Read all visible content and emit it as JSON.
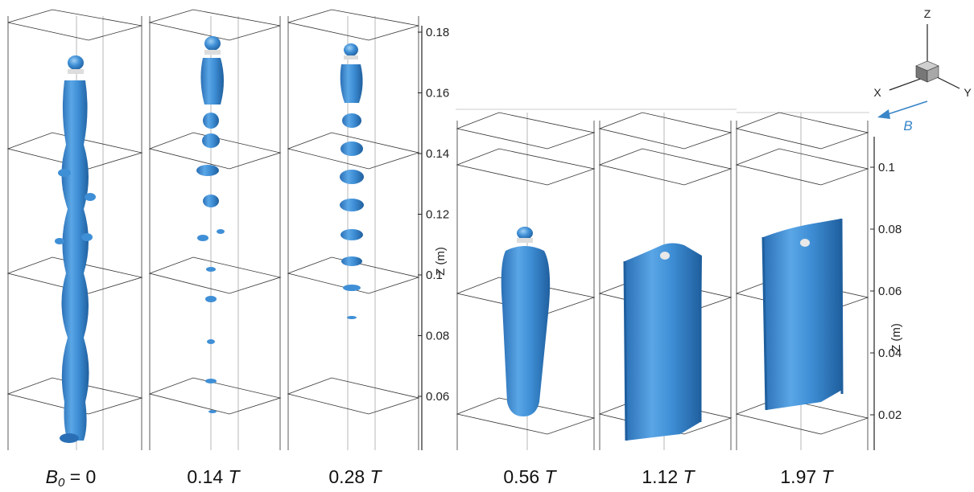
{
  "panels": [
    {
      "label": "0",
      "label_prefix": "B",
      "label_sub": "0",
      "label_eq": " = ",
      "unit": ""
    },
    {
      "label": "0.14",
      "unit": "T"
    },
    {
      "label": "0.28",
      "unit": "T"
    },
    {
      "label": "0.56",
      "unit": "T"
    },
    {
      "label": "1.12",
      "unit": "T"
    },
    {
      "label": "1.97",
      "unit": "T"
    }
  ],
  "axis_left": {
    "title": "Z (m)",
    "ticks": [
      "0.18",
      "0.16",
      "0.14",
      "0.12",
      "0.1",
      "0.08",
      "0.06"
    ]
  },
  "axis_right": {
    "title": "Z (m)",
    "ticks": [
      "0.1",
      "0.08",
      "0.06",
      "0.04",
      "0.02"
    ]
  },
  "triad": {
    "z": "Z",
    "x": "X",
    "y": "Y"
  },
  "field_label": "B",
  "colors": {
    "droplet": "#3f8fd6",
    "droplet_dark": "#2a6fb5",
    "droplet_light": "#8cc4f0",
    "field": "#3a86c8"
  }
}
